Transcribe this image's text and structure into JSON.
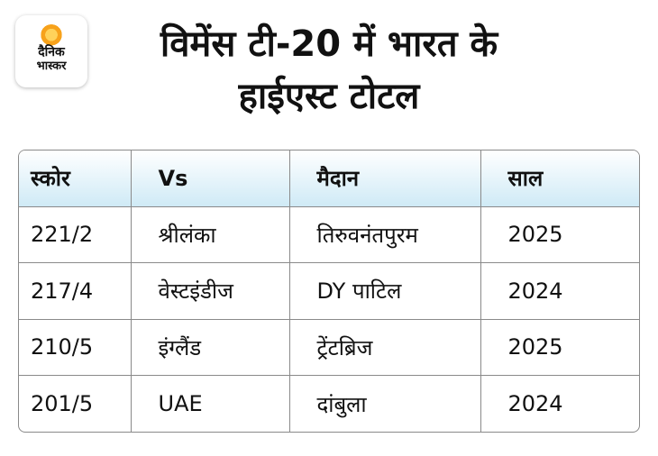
{
  "logo": {
    "line1": "दैनिक",
    "line2": "भास्कर"
  },
  "title": {
    "line1": "विमेंस टी-20 में भारत के",
    "line2": "हाईएस्ट टोटल"
  },
  "table": {
    "headers": [
      "स्कोर",
      "Vs",
      "मैदान",
      "साल"
    ],
    "rows": [
      [
        "221/2",
        "श्रीलंका",
        "तिरुवनंतपुरम",
        "2025"
      ],
      [
        "217/4",
        "वेस्टइंडीज",
        "DY पाटिल",
        "2024"
      ],
      [
        "210/5",
        "इंग्लैंड",
        "ट्रेंटब्रिज",
        "2025"
      ],
      [
        "201/5",
        "UAE",
        "दांबुला",
        "2024"
      ]
    ]
  },
  "colors": {
    "header_bg": "#cfeaf6",
    "logo_accent": "#f7a21b",
    "border": "#8a8a8a"
  }
}
